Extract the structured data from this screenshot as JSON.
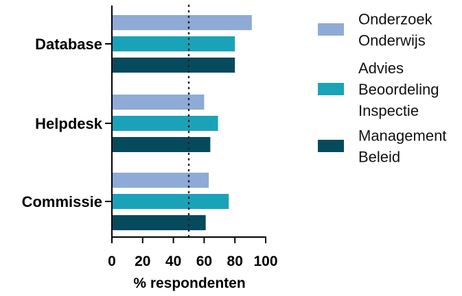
{
  "chart_data": {
    "type": "bar",
    "orientation": "horizontal",
    "categories": [
      "Database",
      "Helpdesk",
      "Commissie"
    ],
    "series": [
      {
        "name": "Onderzoek\nOnderwijs",
        "values": [
          91,
          60,
          63
        ],
        "color": "#8eaad6"
      },
      {
        "name": "Advies\nBeoordeling\nInspectie",
        "values": [
          80,
          69,
          76
        ],
        "color": "#1aa3b8"
      },
      {
        "name": "Management\nBeleid",
        "values": [
          80,
          64,
          61
        ],
        "color": "#064a5d"
      }
    ],
    "xlabel": "% respondenten",
    "ylabel": "",
    "title": "",
    "xlim": [
      0,
      100
    ],
    "xticks": [
      "0",
      "20",
      "40",
      "60",
      "80",
      "100"
    ],
    "reference_line": {
      "x": 50,
      "style": "dotted"
    },
    "legend_position": "right",
    "grid": false
  }
}
